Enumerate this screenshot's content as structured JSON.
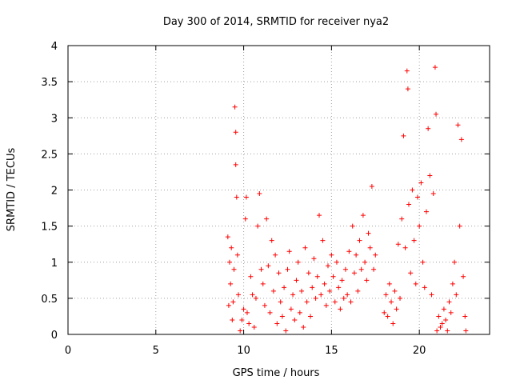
{
  "chart_data": {
    "type": "scatter",
    "title": "Day 300 of 2014, SRMTID for receiver nya2",
    "xlabel": "GPS time / hours",
    "ylabel": "SRMTID / TECUs",
    "xlim": [
      0,
      24
    ],
    "ylim": [
      0,
      4
    ],
    "x_ticks": [
      0,
      5,
      10,
      15,
      20
    ],
    "x_tick_labels": [
      "0",
      "5",
      "10",
      "15",
      "20"
    ],
    "y_ticks": [
      0,
      0.5,
      1,
      1.5,
      2,
      2.5,
      3,
      3.5,
      4
    ],
    "y_tick_labels": [
      "0",
      "0.5",
      "1",
      "1.5",
      "2",
      "2.5",
      "3",
      "3.5",
      "4"
    ],
    "grid": true,
    "marker": "+",
    "colors": {
      "points": "#ff0000",
      "axes": "#000000",
      "grid": "#a0a0a0"
    },
    "series": [
      {
        "name": "SRMTID",
        "points": [
          [
            9.1,
            1.35
          ],
          [
            9.15,
            0.4
          ],
          [
            9.2,
            1.0
          ],
          [
            9.25,
            0.7
          ],
          [
            9.3,
            1.2
          ],
          [
            9.35,
            0.2
          ],
          [
            9.4,
            0.45
          ],
          [
            9.45,
            0.9
          ],
          [
            9.5,
            3.15
          ],
          [
            9.55,
            2.35
          ],
          [
            9.55,
            2.8
          ],
          [
            9.6,
            1.9
          ],
          [
            9.65,
            1.1
          ],
          [
            9.7,
            0.55
          ],
          [
            9.8,
            0.05
          ],
          [
            9.9,
            0.2
          ],
          [
            10.0,
            0.35
          ],
          [
            10.1,
            1.6
          ],
          [
            10.15,
            1.9
          ],
          [
            10.2,
            0.3
          ],
          [
            10.3,
            0.15
          ],
          [
            10.4,
            0.8
          ],
          [
            10.5,
            0.55
          ],
          [
            10.6,
            0.1
          ],
          [
            10.7,
            0.5
          ],
          [
            10.8,
            1.5
          ],
          [
            10.9,
            1.95
          ],
          [
            11.0,
            0.9
          ],
          [
            11.1,
            0.7
          ],
          [
            11.2,
            0.4
          ],
          [
            11.3,
            1.6
          ],
          [
            11.4,
            0.95
          ],
          [
            11.5,
            0.3
          ],
          [
            11.6,
            1.3
          ],
          [
            11.7,
            0.6
          ],
          [
            11.8,
            1.1
          ],
          [
            11.9,
            0.15
          ],
          [
            12.0,
            0.85
          ],
          [
            12.1,
            0.45
          ],
          [
            12.2,
            0.25
          ],
          [
            12.3,
            0.65
          ],
          [
            12.4,
            0.05
          ],
          [
            12.5,
            0.9
          ],
          [
            12.6,
            1.15
          ],
          [
            12.7,
            0.35
          ],
          [
            12.8,
            0.55
          ],
          [
            12.9,
            0.2
          ],
          [
            13.0,
            0.75
          ],
          [
            13.1,
            1.0
          ],
          [
            13.2,
            0.3
          ],
          [
            13.3,
            0.6
          ],
          [
            13.4,
            0.1
          ],
          [
            13.5,
            1.2
          ],
          [
            13.6,
            0.45
          ],
          [
            13.7,
            0.85
          ],
          [
            13.8,
            0.25
          ],
          [
            13.9,
            0.65
          ],
          [
            14.0,
            1.05
          ],
          [
            14.1,
            0.5
          ],
          [
            14.2,
            0.8
          ],
          [
            14.3,
            1.65
          ],
          [
            14.4,
            0.55
          ],
          [
            14.5,
            1.3
          ],
          [
            14.6,
            0.7
          ],
          [
            14.7,
            0.4
          ],
          [
            14.8,
            0.95
          ],
          [
            14.9,
            0.6
          ],
          [
            15.0,
            1.1
          ],
          [
            15.1,
            0.8
          ],
          [
            15.2,
            0.45
          ],
          [
            15.3,
            1.0
          ],
          [
            15.4,
            0.65
          ],
          [
            15.5,
            0.35
          ],
          [
            15.6,
            0.75
          ],
          [
            15.7,
            0.5
          ],
          [
            15.8,
            0.9
          ],
          [
            15.9,
            0.55
          ],
          [
            16.0,
            1.15
          ],
          [
            16.1,
            0.45
          ],
          [
            16.2,
            1.5
          ],
          [
            16.3,
            0.85
          ],
          [
            16.4,
            1.1
          ],
          [
            16.5,
            0.6
          ],
          [
            16.6,
            1.3
          ],
          [
            16.7,
            0.9
          ],
          [
            16.8,
            1.65
          ],
          [
            16.9,
            1.0
          ],
          [
            17.0,
            0.75
          ],
          [
            17.1,
            1.4
          ],
          [
            17.2,
            1.2
          ],
          [
            17.3,
            2.05
          ],
          [
            17.4,
            0.9
          ],
          [
            17.5,
            1.1
          ],
          [
            18.0,
            0.3
          ],
          [
            18.1,
            0.55
          ],
          [
            18.2,
            0.25
          ],
          [
            18.3,
            0.7
          ],
          [
            18.4,
            0.45
          ],
          [
            18.5,
            0.15
          ],
          [
            18.6,
            0.6
          ],
          [
            18.7,
            0.35
          ],
          [
            18.8,
            1.25
          ],
          [
            18.9,
            0.5
          ],
          [
            19.0,
            1.6
          ],
          [
            19.1,
            2.75
          ],
          [
            19.2,
            1.2
          ],
          [
            19.3,
            3.65
          ],
          [
            19.35,
            3.4
          ],
          [
            19.4,
            1.8
          ],
          [
            19.5,
            0.85
          ],
          [
            19.6,
            2.0
          ],
          [
            19.7,
            1.3
          ],
          [
            19.8,
            0.7
          ],
          [
            19.9,
            1.9
          ],
          [
            20.0,
            1.5
          ],
          [
            20.1,
            2.1
          ],
          [
            20.2,
            1.0
          ],
          [
            20.3,
            0.65
          ],
          [
            20.4,
            1.7
          ],
          [
            20.5,
            2.85
          ],
          [
            20.6,
            2.2
          ],
          [
            20.7,
            0.55
          ],
          [
            20.8,
            1.95
          ],
          [
            20.9,
            3.7
          ],
          [
            20.95,
            3.05
          ],
          [
            21.0,
            0.05
          ],
          [
            21.1,
            0.25
          ],
          [
            21.2,
            0.1
          ],
          [
            21.3,
            0.15
          ],
          [
            21.4,
            0.35
          ],
          [
            21.5,
            0.2
          ],
          [
            21.6,
            0.05
          ],
          [
            21.7,
            0.45
          ],
          [
            21.8,
            0.3
          ],
          [
            21.9,
            0.7
          ],
          [
            22.0,
            1.0
          ],
          [
            22.1,
            0.55
          ],
          [
            22.2,
            2.9
          ],
          [
            22.3,
            1.5
          ],
          [
            22.4,
            2.7
          ],
          [
            22.5,
            0.8
          ],
          [
            22.6,
            0.25
          ],
          [
            22.65,
            0.05
          ]
        ]
      }
    ]
  }
}
